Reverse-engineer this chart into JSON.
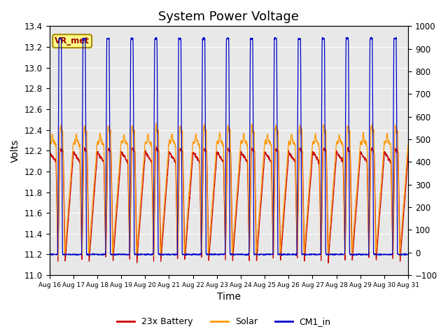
{
  "title": "System Power Voltage",
  "xlabel": "Time",
  "ylabel": "Volts",
  "ylim_left": [
    11.0,
    13.4
  ],
  "ylim_right": [
    -100,
    1000
  ],
  "yticks_left": [
    11.0,
    11.2,
    11.4,
    11.6,
    11.8,
    12.0,
    12.2,
    12.4,
    12.6,
    12.8,
    13.0,
    13.2,
    13.4
  ],
  "yticks_right": [
    -100,
    0,
    100,
    200,
    300,
    400,
    500,
    600,
    700,
    800,
    900,
    1000
  ],
  "xtick_labels": [
    "Aug 16",
    "Aug 17",
    "Aug 18",
    "Aug 19",
    "Aug 20",
    "Aug 21",
    "Aug 22",
    "Aug 23",
    "Aug 24",
    "Aug 25",
    "Aug 26",
    "Aug 27",
    "Aug 28",
    "Aug 29",
    "Aug 30",
    "Aug 31"
  ],
  "vr_met_label": "VR_met",
  "legend_labels": [
    "23x Battery",
    "Solar",
    "CM1_in"
  ],
  "line_colors": [
    "#cc0000",
    "#ff9900",
    "#0000cc"
  ],
  "bg_color": "#e8e8e8",
  "fig_bg_color": "#ffffff",
  "n_cycles": 15,
  "battery_base": 11.13,
  "battery_mid": 12.15,
  "battery_peak": 12.22,
  "solar_base": 11.18,
  "solar_mid": 12.28,
  "solar_peak": 12.42,
  "cm1_base": 11.2,
  "cm1_peak": 13.28,
  "title_fontsize": 13,
  "axis_fontsize": 10,
  "tick_fontsize": 8.5
}
